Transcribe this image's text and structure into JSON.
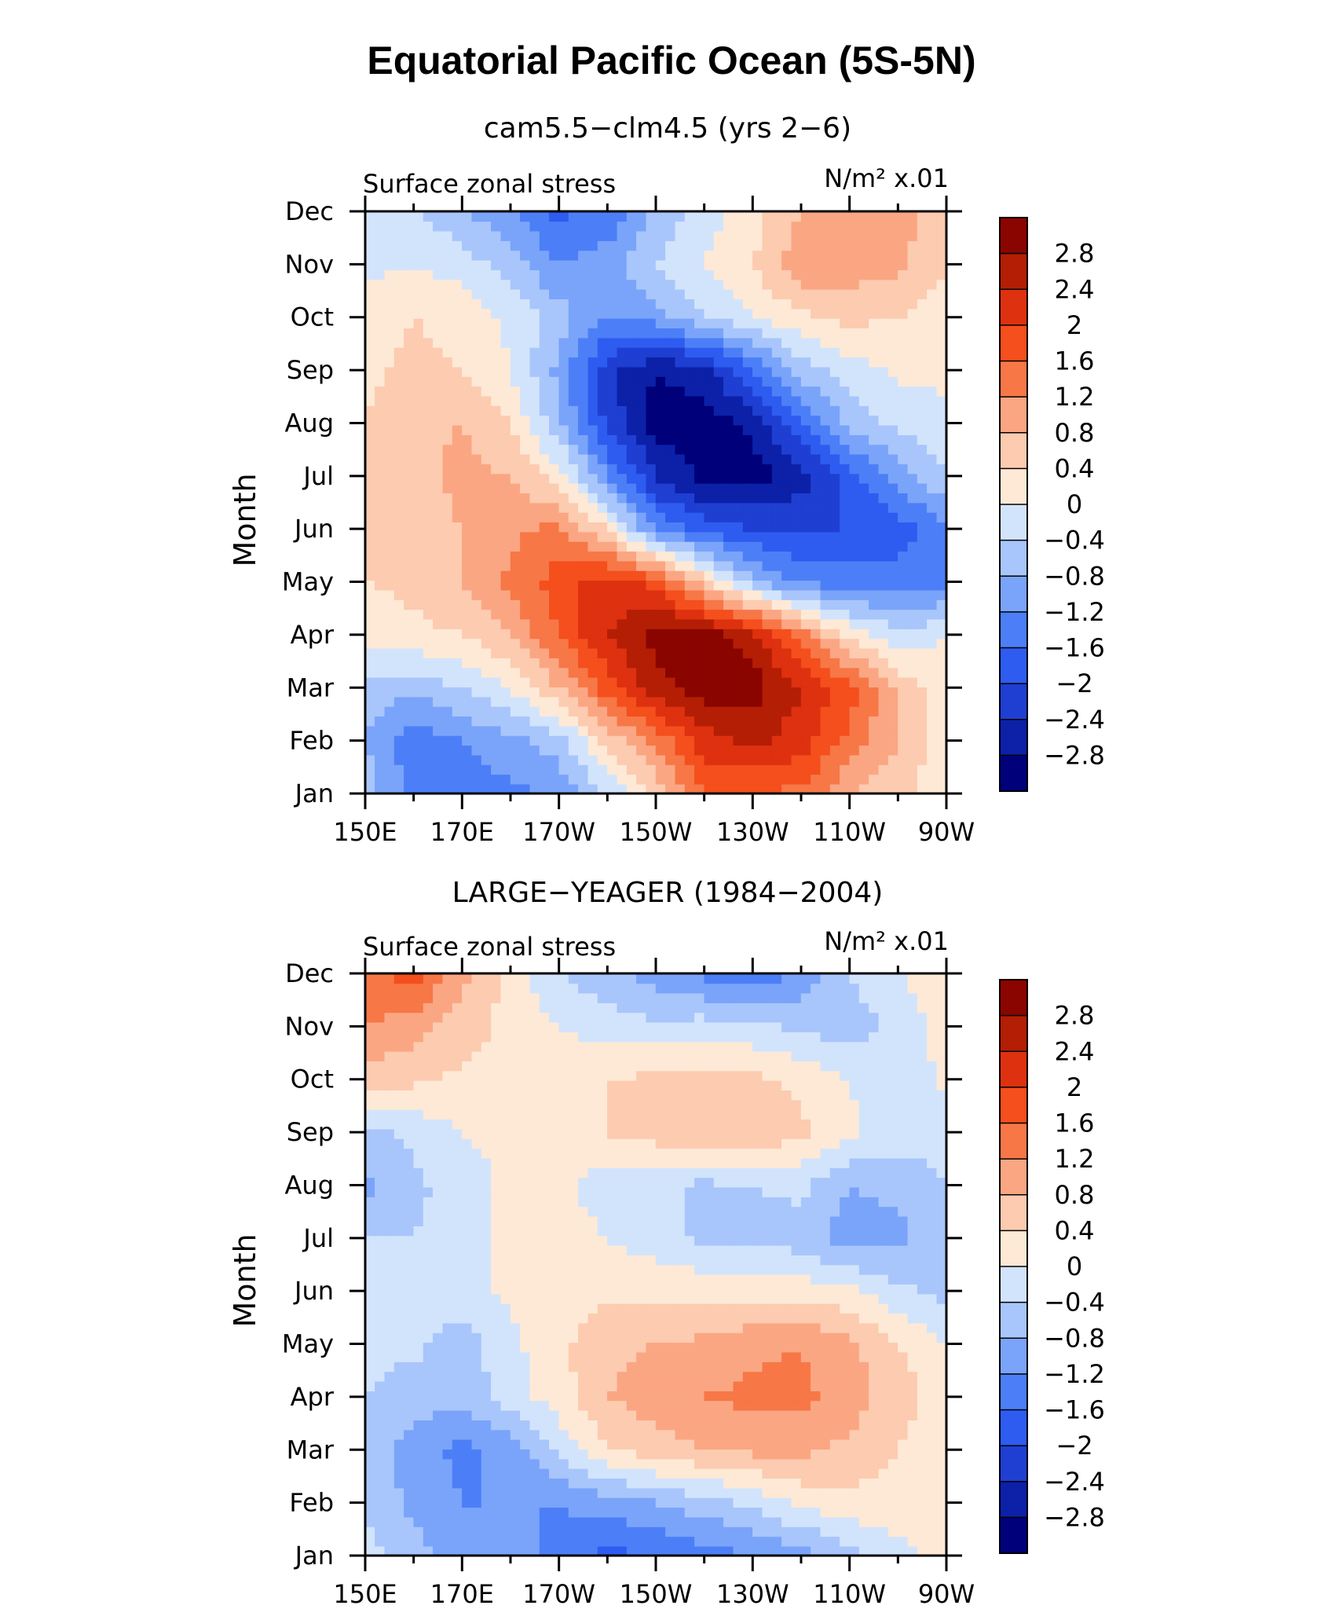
{
  "figure": {
    "title": "Equatorial Pacific Ocean (5S-5N)"
  },
  "palette": [
    "#00007a",
    "#0c21a8",
    "#1f3fd2",
    "#2e5cf0",
    "#4c7ff7",
    "#7aa4fa",
    "#a8c6fb",
    "#d2e4fc",
    "#fde9d6",
    "#fccbb0",
    "#fba683",
    "#f77747",
    "#f44f1c",
    "#de3110",
    "#b41e04",
    "#8a0500"
  ],
  "chart_data": [
    {
      "type": "heatmap",
      "title": "cam5.5−clm4.5 (yrs 2−6)",
      "subtitle_left": "Surface zonal stress",
      "units": "N/m² x.01",
      "ylabel": "Month",
      "xlabel": "",
      "x_ticks": [
        "150E",
        "170E",
        "170W",
        "150W",
        "130W",
        "110W",
        "90W"
      ],
      "y_ticks": [
        "Jan",
        "Feb",
        "Mar",
        "Apr",
        "May",
        "Jun",
        "Jul",
        "Aug",
        "Sep",
        "Oct",
        "Nov",
        "Dec"
      ],
      "x_range": [
        150,
        270
      ],
      "y_range": [
        0,
        11
      ],
      "colorbar_labels": [
        "2.8",
        "2.4",
        "2",
        "1.6",
        "1.2",
        "0.8",
        "0.4",
        "0",
        "−0.4",
        "−0.8",
        "−1.2",
        "−1.6",
        "−2",
        "−2.4",
        "−2.8"
      ],
      "grid_x": [
        "150E",
        "160E",
        "170E",
        "180",
        "170W",
        "160W",
        "150W",
        "140W",
        "130W",
        "120W",
        "110W",
        "100W",
        "90W"
      ],
      "grid_y": [
        "Jan",
        "Feb",
        "Mar",
        "Apr",
        "May",
        "Jun",
        "Jul",
        "Aug",
        "Sep",
        "Oct",
        "Nov",
        "Dec"
      ],
      "values": [
        [
          -0.6,
          -1.3,
          -1.5,
          -1.3,
          -1.1,
          -0.4,
          0.5,
          1.6,
          1.6,
          1.5,
          0.8,
          0.5,
          0.1
        ],
        [
          -0.8,
          -1.5,
          -1.2,
          -0.9,
          -0.6,
          0.5,
          1.3,
          2.2,
          2.5,
          2.2,
          1.5,
          0.8,
          0.2
        ],
        [
          -0.5,
          -0.7,
          -0.4,
          0.0,
          0.8,
          1.8,
          2.6,
          3.0,
          3.0,
          2.4,
          1.8,
          0.7,
          0.2
        ],
        [
          0.1,
          0.3,
          0.4,
          0.8,
          1.6,
          2.4,
          3.0,
          3.0,
          2.6,
          1.4,
          0.3,
          -0.3,
          0.0
        ],
        [
          0.4,
          0.5,
          0.8,
          1.3,
          1.8,
          2.2,
          1.9,
          0.6,
          -0.7,
          -1.3,
          -1.4,
          -1.4,
          -1.3
        ],
        [
          0.5,
          0.6,
          0.8,
          1.1,
          1.3,
          0.4,
          -1.3,
          -1.8,
          -2.0,
          -2.0,
          -2.0,
          -1.8,
          -1.3
        ],
        [
          0.5,
          0.7,
          0.9,
          0.8,
          0.2,
          -1.2,
          -2.4,
          -2.9,
          -3.0,
          -2.6,
          -1.8,
          -1.0,
          -0.4
        ],
        [
          0.4,
          0.7,
          0.8,
          0.4,
          -0.7,
          -2.1,
          -3.0,
          -3.0,
          -2.7,
          -1.7,
          -0.7,
          -0.3,
          -0.1
        ],
        [
          0.3,
          0.5,
          0.4,
          0.0,
          -0.9,
          -2.3,
          -2.8,
          -2.6,
          -1.6,
          -0.6,
          -0.2,
          0.1,
          0.1
        ],
        [
          0.2,
          0.4,
          0.3,
          -0.1,
          -0.6,
          -1.2,
          -1.0,
          -0.4,
          0.0,
          0.3,
          0.5,
          0.4,
          0.2
        ],
        [
          -0.1,
          0.0,
          -0.2,
          -0.6,
          -1.2,
          -1.0,
          -0.4,
          0.0,
          0.4,
          1.1,
          1.0,
          0.9,
          0.4
        ],
        [
          -0.2,
          -0.4,
          -0.7,
          -1.2,
          -1.7,
          -1.5,
          -0.7,
          -0.2,
          0.2,
          0.8,
          1.1,
          1.0,
          0.5
        ]
      ]
    },
    {
      "type": "heatmap",
      "title": "LARGE−YEAGER (1984−2004)",
      "subtitle_left": "Surface zonal stress",
      "units": "N/m² x.01",
      "ylabel": "Month",
      "xlabel": "",
      "x_ticks": [
        "150E",
        "170E",
        "170W",
        "150W",
        "130W",
        "110W",
        "90W"
      ],
      "y_ticks": [
        "Jan",
        "Feb",
        "Mar",
        "Apr",
        "May",
        "Jun",
        "Jul",
        "Aug",
        "Sep",
        "Oct",
        "Nov",
        "Dec"
      ],
      "x_range": [
        150,
        270
      ],
      "y_range": [
        0,
        11
      ],
      "colorbar_labels": [
        "2.8",
        "2.4",
        "2",
        "1.6",
        "1.2",
        "0.8",
        "0.4",
        "0",
        "−0.4",
        "−0.8",
        "−1.2",
        "−1.6",
        "−2",
        "−2.4",
        "−2.8"
      ],
      "grid_x": [
        "150E",
        "160E",
        "170E",
        "180",
        "170W",
        "160W",
        "150W",
        "140W",
        "130W",
        "120W",
        "110W",
        "100W",
        "90W"
      ],
      "grid_y": [
        "Jan",
        "Feb",
        "Mar",
        "Apr",
        "May",
        "Jun",
        "Jul",
        "Aug",
        "Sep",
        "Oct",
        "Nov",
        "Dec"
      ],
      "values": [
        [
          -0.2,
          -0.6,
          -1.1,
          -1.1,
          -1.3,
          -1.7,
          -1.6,
          -1.4,
          -1.2,
          -1.0,
          -0.6,
          -0.1,
          0.1
        ],
        [
          -0.5,
          -0.9,
          -1.2,
          -1.2,
          -1.2,
          -1.0,
          -0.8,
          -0.6,
          -0.3,
          0.1,
          0.3,
          0.2,
          0.1
        ],
        [
          -0.5,
          -1.0,
          -1.3,
          -1.1,
          -0.3,
          0.4,
          0.6,
          0.8,
          0.9,
          0.9,
          0.7,
          0.4,
          0.1
        ],
        [
          -0.4,
          -0.6,
          -0.7,
          -0.2,
          0.2,
          0.8,
          1.0,
          1.2,
          1.3,
          1.3,
          1.0,
          0.6,
          0.2
        ],
        [
          -0.3,
          -0.3,
          -0.6,
          -0.1,
          0.3,
          0.7,
          0.8,
          0.9,
          1.1,
          1.2,
          0.9,
          0.4,
          0.0
        ],
        [
          -0.3,
          -0.3,
          -0.2,
          0.1,
          0.2,
          0.3,
          0.3,
          0.3,
          0.2,
          0.2,
          0.1,
          -0.3,
          -0.5
        ],
        [
          -0.4,
          -0.4,
          -0.2,
          0.1,
          0.2,
          0.0,
          -0.2,
          -0.5,
          -0.5,
          -0.6,
          -1.0,
          -0.9,
          -0.6
        ],
        [
          -0.9,
          -0.5,
          -0.2,
          0.1,
          0.1,
          -0.2,
          -0.3,
          -0.5,
          -0.4,
          -0.3,
          -0.8,
          -0.7,
          -0.4
        ],
        [
          -0.6,
          -0.3,
          0.0,
          0.1,
          0.2,
          0.4,
          0.6,
          0.7,
          0.8,
          0.5,
          0.1,
          -0.2,
          -0.2
        ],
        [
          0.6,
          0.5,
          0.3,
          0.1,
          0.2,
          0.4,
          0.5,
          0.6,
          0.5,
          0.3,
          0.0,
          -0.3,
          0.1
        ],
        [
          1.2,
          1.0,
          0.6,
          0.3,
          0.0,
          -0.2,
          -0.3,
          -0.2,
          -0.3,
          -0.5,
          -0.6,
          -0.3,
          0.2
        ],
        [
          1.5,
          1.8,
          0.9,
          0.2,
          -0.4,
          -0.7,
          -1.0,
          -1.3,
          -1.5,
          -1.1,
          -0.4,
          0.0,
          0.2
        ]
      ]
    }
  ]
}
